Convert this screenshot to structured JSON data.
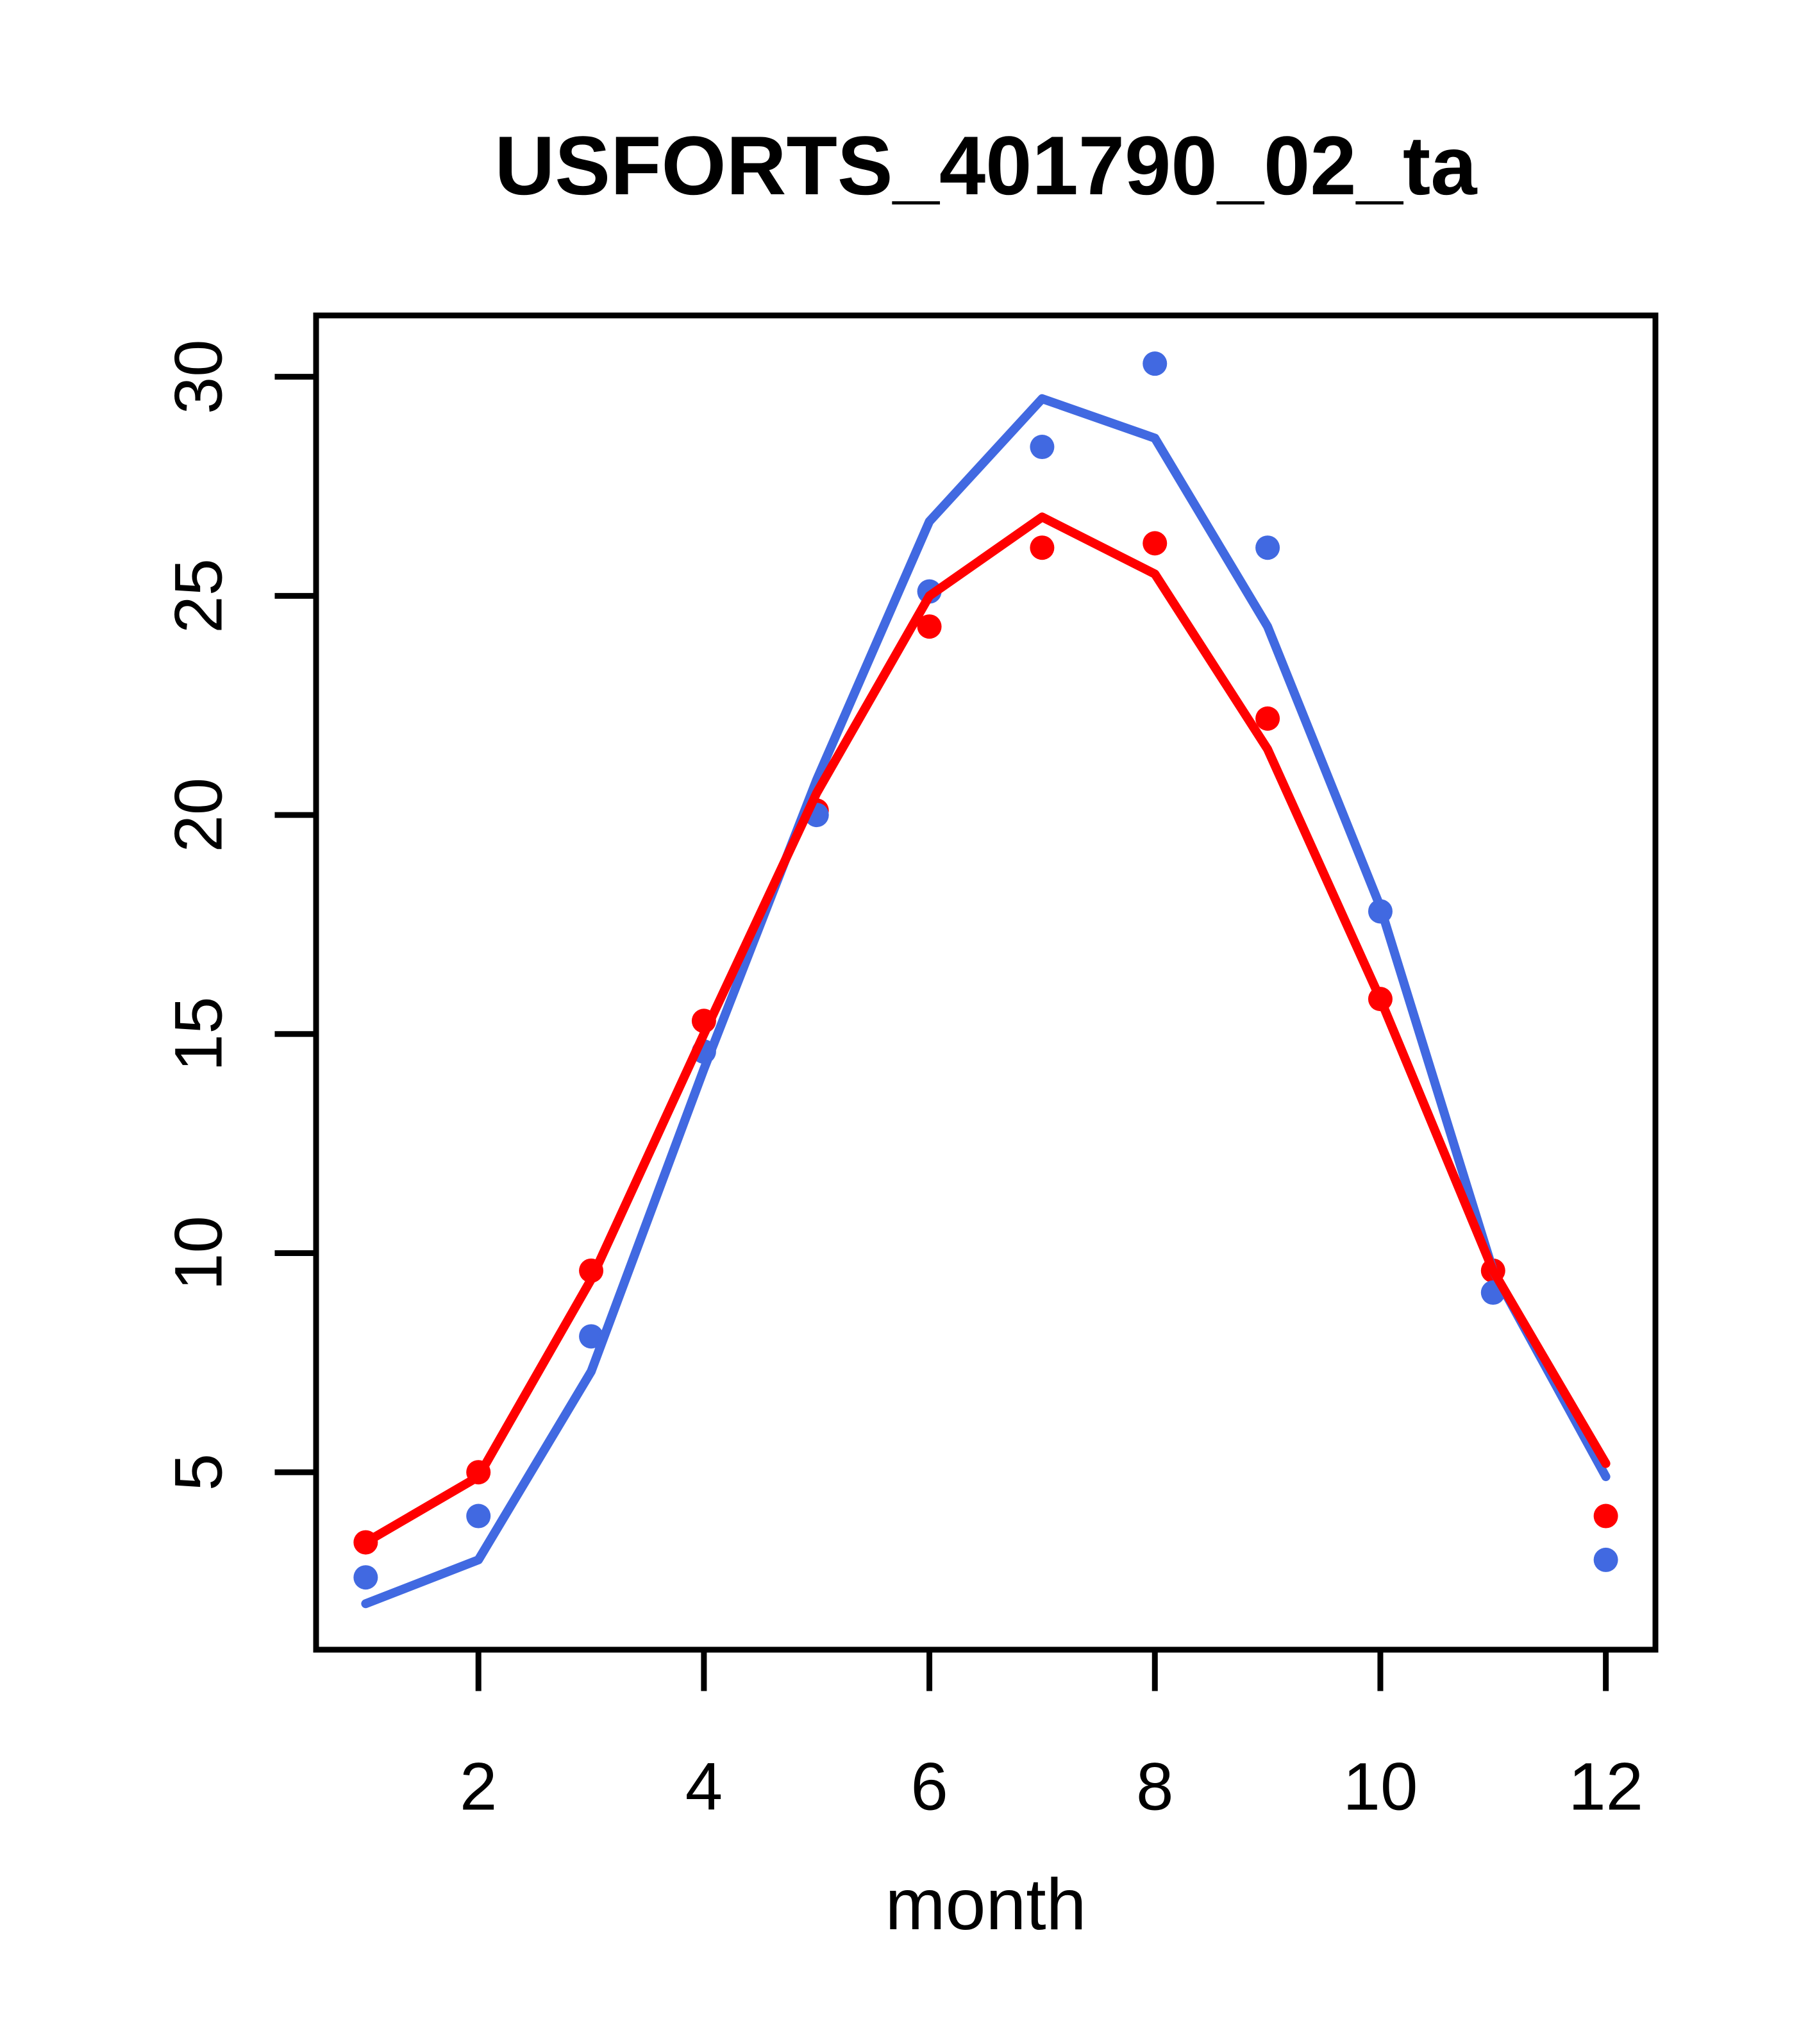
{
  "figure": {
    "title": "USFORTS_401790_02_ta",
    "xlabel": "month"
  },
  "colors": {
    "red": "#ff0000",
    "blue": "#4169e1",
    "axis": "#000000",
    "background": "#ffffff"
  },
  "chart_data": {
    "type": "line",
    "title": "USFORTS_401790_02_ta",
    "xlabel": "month",
    "ylabel": "",
    "x": [
      1,
      2,
      3,
      4,
      5,
      6,
      7,
      8,
      9,
      10,
      11,
      12
    ],
    "xticks": [
      2,
      4,
      6,
      8,
      10,
      12
    ],
    "yticks": [
      5,
      10,
      15,
      20,
      25,
      30
    ],
    "xlim": [
      0.56,
      12.44
    ],
    "ylim": [
      0.95,
      31.4
    ],
    "grid": false,
    "legend": "none",
    "series": [
      {
        "name": "red-points",
        "type": "scatter",
        "marker": "filled-circle",
        "color": "#ff0000",
        "values": [
          3.4,
          5.0,
          9.6,
          15.3,
          20.1,
          24.3,
          26.1,
          26.2,
          22.2,
          15.8,
          9.6,
          4.0
        ]
      },
      {
        "name": "blue-points",
        "type": "scatter",
        "marker": "filled-circle",
        "color": "#4169e1",
        "values": [
          2.6,
          4.0,
          8.1,
          14.6,
          20.0,
          25.1,
          28.4,
          30.3,
          26.1,
          17.8,
          9.1,
          3.0
        ]
      },
      {
        "name": "blue-line",
        "type": "line",
        "color": "#4169e1",
        "values": [
          2.0,
          3.0,
          7.3,
          14.2,
          20.8,
          26.7,
          29.5,
          28.6,
          24.3,
          17.9,
          9.6,
          4.9
        ]
      },
      {
        "name": "red-line",
        "type": "line",
        "color": "#ff0000",
        "values": [
          3.4,
          4.9,
          9.4,
          15.0,
          20.5,
          25.0,
          26.8,
          25.5,
          21.5,
          15.8,
          9.6,
          5.2
        ]
      }
    ]
  }
}
